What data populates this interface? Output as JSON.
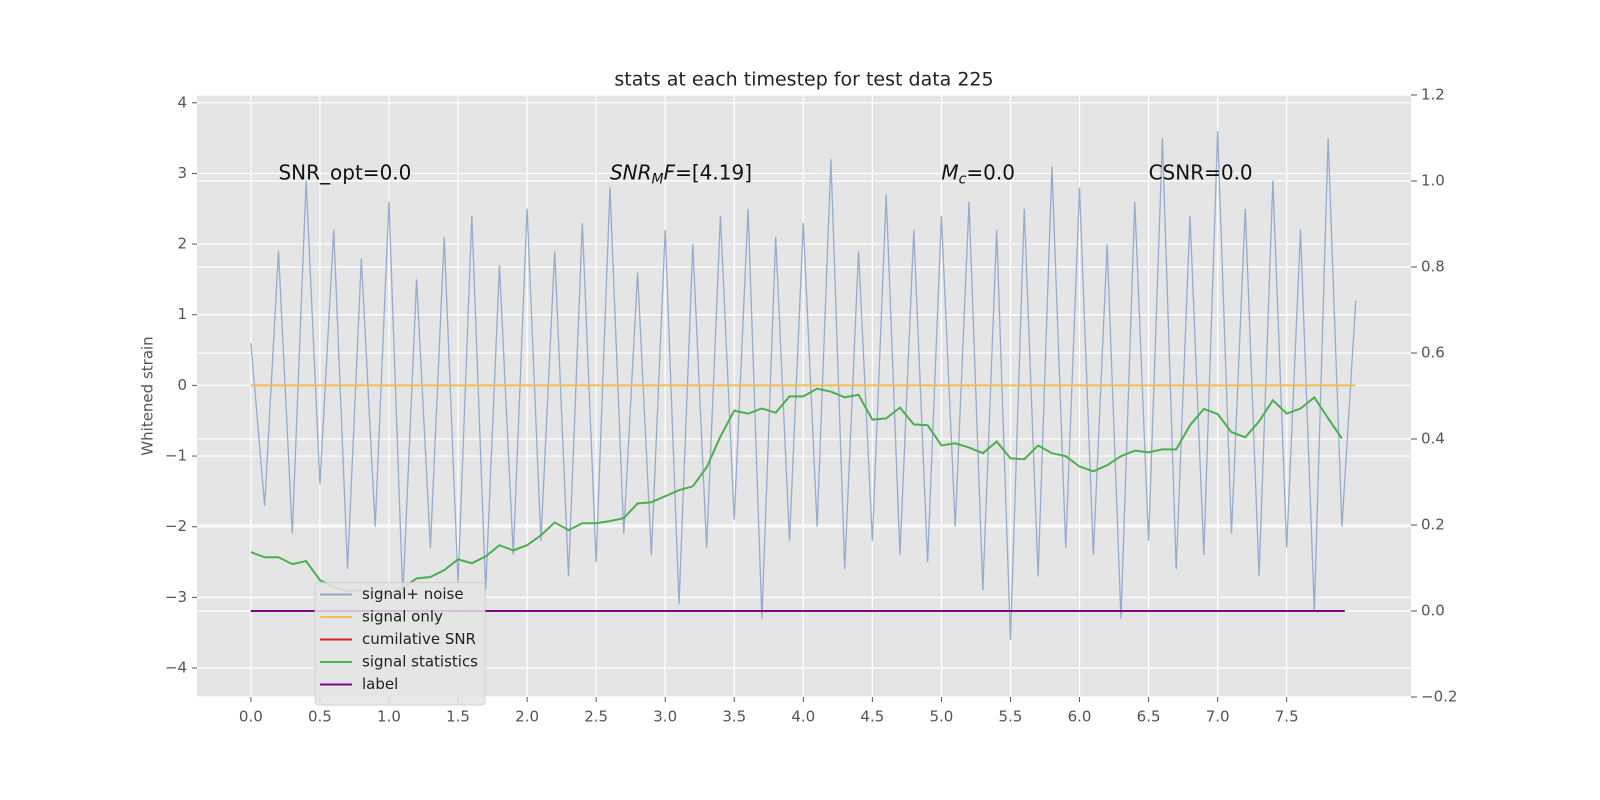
{
  "chart_data": {
    "type": "line",
    "title": "stats at each timestep for test data 225",
    "y_label": "Whitened strain",
    "xlim": [
      -0.39,
      8.4
    ],
    "ylim": [
      -4.41,
      4.11
    ],
    "y2lim": [
      -0.2,
      1.2
    ],
    "xticks": [
      {
        "value": 0,
        "label": "0.0"
      },
      {
        "value": 0.5,
        "label": "0.5"
      },
      {
        "value": 1,
        "label": "1.0"
      },
      {
        "value": 1.5,
        "label": "1.5"
      },
      {
        "value": 2,
        "label": "2.0"
      },
      {
        "value": 2.5,
        "label": "2.5"
      },
      {
        "value": 3,
        "label": "3.0"
      },
      {
        "value": 3.5,
        "label": "3.5"
      },
      {
        "value": 4,
        "label": "4.0"
      },
      {
        "value": 4.5,
        "label": "4.5"
      },
      {
        "value": 5,
        "label": "5.0"
      },
      {
        "value": 5.5,
        "label": "5.5"
      },
      {
        "value": 6,
        "label": "6.0"
      },
      {
        "value": 6.5,
        "label": "6.5"
      },
      {
        "value": 7,
        "label": "7.0"
      },
      {
        "value": 7.5,
        "label": "7.5"
      }
    ],
    "yticks": [
      {
        "value": -4,
        "label": "−4"
      },
      {
        "value": -3,
        "label": "−3"
      },
      {
        "value": -2,
        "label": "−2"
      },
      {
        "value": -1,
        "label": "−1"
      },
      0,
      1,
      2,
      3,
      4
    ],
    "y2ticks": [
      {
        "value": -0.2,
        "label": "−0.2"
      },
      {
        "value": 0,
        "label": "0.0"
      },
      {
        "value": 0.2,
        "label": "0.2"
      },
      {
        "value": 0.4,
        "label": "0.4"
      },
      {
        "value": 0.6,
        "label": "0.6"
      },
      {
        "value": 0.8,
        "label": "0.8"
      },
      {
        "value": 1,
        "label": "1.0"
      },
      {
        "value": 1.2,
        "label": "1.2"
      }
    ],
    "grid": true,
    "legend_position": "lower left",
    "annotations": [
      {
        "x": 0.2,
        "y": 3,
        "segments": [
          {
            "text": "SNR_opt=0.0",
            "style": "normal"
          }
        ]
      },
      {
        "x": 2.6,
        "y": 3,
        "segments": [
          {
            "text": "SNR",
            "style": "italic"
          },
          {
            "text": "M",
            "style": "sub"
          },
          {
            "text": "F",
            "style": "italic"
          },
          {
            "text": "=[4.19]",
            "style": "normal"
          }
        ]
      },
      {
        "x": 5.0,
        "y": 3,
        "segments": [
          {
            "text": "M",
            "style": "italic"
          },
          {
            "text": "c",
            "style": "sub"
          },
          {
            "text": "=0.0",
            "style": "normal"
          }
        ]
      },
      {
        "x": 6.5,
        "y": 3,
        "segments": [
          {
            "text": "CSNR=0.0",
            "style": "normal"
          }
        ]
      }
    ],
    "series": [
      {
        "name": "signal+ noise",
        "color": "#92a8cd",
        "axis": "y",
        "x": [
          0,
          0.1,
          0.2,
          0.3,
          0.4,
          0.5,
          0.6,
          0.7,
          0.8,
          0.9,
          1,
          1.1,
          1.2,
          1.3,
          1.4,
          1.5,
          1.6,
          1.7,
          1.8,
          1.9,
          2,
          2.1,
          2.2,
          2.3,
          2.4,
          2.5,
          2.6,
          2.7,
          2.8,
          2.9,
          3,
          3.1,
          3.2,
          3.3,
          3.4,
          3.5,
          3.6,
          3.7,
          3.8,
          3.9,
          4,
          4.1,
          4.2,
          4.3,
          4.4,
          4.5,
          4.6,
          4.7,
          4.8,
          4.9,
          5,
          5.1,
          5.2,
          5.3,
          5.4,
          5.5,
          5.6,
          5.7,
          5.8,
          5.9,
          6,
          6.1,
          6.2,
          6.3,
          6.4,
          6.5,
          6.6,
          6.7,
          6.8,
          6.9,
          7,
          7.1,
          7.2,
          7.3,
          7.4,
          7.5,
          7.6,
          7.7,
          7.8,
          7.9,
          8
        ],
        "values": [
          0.6,
          -1.7,
          1.9,
          -2.1,
          2.9,
          -1.4,
          2.2,
          -2.6,
          1.8,
          -2.0,
          2.6,
          -3.0,
          1.5,
          -2.3,
          2.1,
          -2.8,
          2.4,
          -2.9,
          1.7,
          -2.4,
          2.5,
          -2.2,
          1.9,
          -2.7,
          2.3,
          -2.5,
          2.8,
          -2.1,
          1.6,
          -2.4,
          2.2,
          -3.1,
          2.0,
          -2.3,
          2.4,
          -1.9,
          2.5,
          -3.3,
          2.1,
          -2.2,
          2.3,
          -2.0,
          3.2,
          -2.6,
          1.9,
          -2.2,
          2.7,
          -2.4,
          2.2,
          -2.5,
          2.4,
          -2.0,
          2.6,
          -2.9,
          2.2,
          -3.6,
          2.5,
          -2.7,
          3.1,
          -2.3,
          2.8,
          -2.4,
          2.0,
          -3.3,
          2.6,
          -2.2,
          3.5,
          -2.6,
          2.4,
          -2.4,
          3.6,
          -2.1,
          2.5,
          -2.7,
          2.9,
          -2.3,
          2.2,
          -3.2,
          3.5,
          -2.0,
          1.2
        ]
      },
      {
        "name": "signal only",
        "color": "#f0c050",
        "axis": "y",
        "x": [
          0,
          8
        ],
        "values": [
          0,
          0
        ]
      },
      {
        "name": "cumilative SNR",
        "color": "#d62728",
        "axis": "y2",
        "x": [
          0,
          7.92
        ],
        "values": [
          0,
          0
        ]
      },
      {
        "name": "signal statistics",
        "color": "#4caf50",
        "axis": "y2",
        "x": [
          0,
          0.1,
          0.2,
          0.3,
          0.4,
          0.5,
          0.6,
          0.7,
          0.8,
          0.9,
          1,
          1.1,
          1.2,
          1.3,
          1.4,
          1.5,
          1.6,
          1.7,
          1.8,
          1.9,
          2,
          2.1,
          2.2,
          2.3,
          2.4,
          2.5,
          2.6,
          2.7,
          2.8,
          2.9,
          3,
          3.1,
          3.2,
          3.3,
          3.4,
          3.5,
          3.6,
          3.7,
          3.8,
          3.9,
          4,
          4.1,
          4.2,
          4.3,
          4.4,
          4.5,
          4.6,
          4.7,
          4.8,
          4.9,
          5,
          5.1,
          5.2,
          5.3,
          5.4,
          5.5,
          5.6,
          5.7,
          5.8,
          5.9,
          6,
          6.1,
          6.2,
          6.3,
          6.4,
          6.5,
          6.6,
          6.7,
          6.8,
          6.9,
          7,
          7.1,
          7.2,
          7.3,
          7.4,
          7.5,
          7.6,
          7.7,
          7.8,
          7.9
        ],
        "values": [
          0.137,
          0.125,
          0.125,
          0.109,
          0.116,
          0.072,
          0.055,
          0.046,
          0.048,
          0.044,
          0.039,
          0.053,
          0.076,
          0.079,
          0.095,
          0.12,
          0.111,
          0.127,
          0.153,
          0.141,
          0.153,
          0.176,
          0.206,
          0.188,
          0.204,
          0.204,
          0.209,
          0.216,
          0.25,
          0.253,
          0.267,
          0.281,
          0.29,
          0.334,
          0.406,
          0.466,
          0.459,
          0.471,
          0.461,
          0.499,
          0.499,
          0.517,
          0.51,
          0.497,
          0.503,
          0.445,
          0.448,
          0.473,
          0.434,
          0.432,
          0.385,
          0.39,
          0.38,
          0.367,
          0.394,
          0.355,
          0.353,
          0.385,
          0.367,
          0.36,
          0.336,
          0.325,
          0.339,
          0.36,
          0.373,
          0.369,
          0.376,
          0.376,
          0.432,
          0.47,
          0.458,
          0.416,
          0.404,
          0.441,
          0.49,
          0.459,
          0.471,
          0.497,
          0.448,
          0.401
        ]
      },
      {
        "name": "label",
        "color": "#7b0a82",
        "axis": "y2",
        "x": [
          0,
          7.92
        ],
        "values": [
          0,
          0
        ]
      }
    ]
  }
}
